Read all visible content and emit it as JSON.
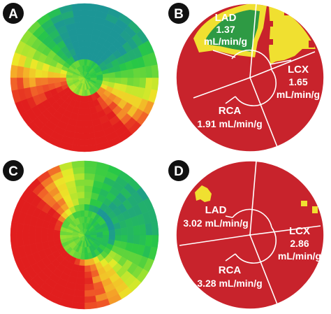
{
  "panels": [
    {
      "letter": "A"
    },
    {
      "letter": "B",
      "labels": [
        {
          "name": "LAD",
          "value": "1.37",
          "unit": "mL/min/g"
        },
        {
          "name": "LCX",
          "value": "1.65",
          "unit": "mL/min/g"
        },
        {
          "name": "RCA",
          "value": "1.91 mL/min/g"
        }
      ]
    },
    {
      "letter": "C"
    },
    {
      "letter": "D",
      "labels": [
        {
          "name": "LAD",
          "value": "3.02 mL/min/g"
        },
        {
          "name": "LCX",
          "value": "2.86",
          "unit": "mL/min/g"
        },
        {
          "name": "RCA",
          "value": "3.28 mL/min/g"
        }
      ]
    }
  ],
  "colors": {
    "territory_red": "#c8232c",
    "defect_yellow": "#f0e030",
    "defect_green": "#2e9a44",
    "border": "#ffffff",
    "badge_bg": "#111111"
  }
}
